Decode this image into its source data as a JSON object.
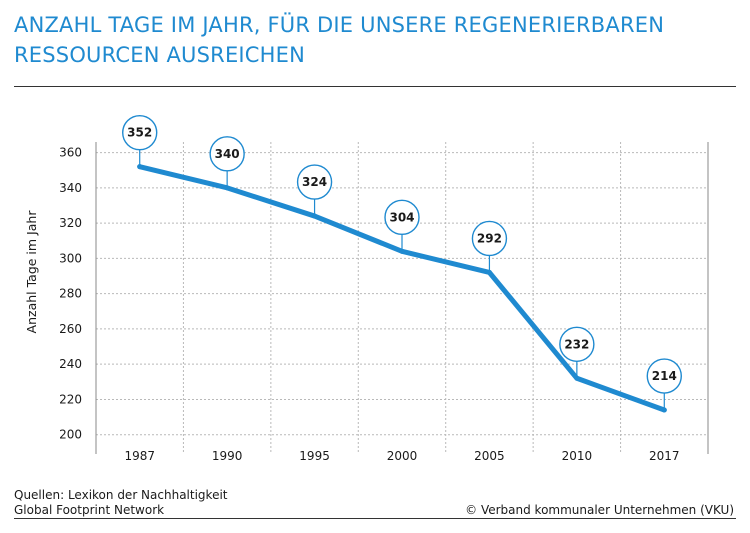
{
  "header": {
    "title_line1": "ANZAHL TAGE IM JAHR, FÜR DIE UNSERE REGENERIERBAREN",
    "title_line2": "RESSOURCEN AUSREICHEN"
  },
  "footer": {
    "source_line1": "Quellen: Lexikon der Nachhaltigkeit",
    "source_line2": "Global Footprint Network",
    "credit": "© Verband kommunaler Unternehmen (VKU)"
  },
  "chart_data": {
    "type": "line",
    "title": "ANZAHL TAGE IM JAHR, FÜR DIE UNSERE REGENERIERBAREN RESSOURCEN AUSREICHEN",
    "xlabel": "",
    "ylabel": "Anzahl Tage im Jahr",
    "categories": [
      "1987",
      "1990",
      "1995",
      "2000",
      "2005",
      "2010",
      "2017"
    ],
    "values": [
      352,
      340,
      324,
      304,
      292,
      232,
      214
    ],
    "y_ticks": [
      200,
      220,
      240,
      260,
      280,
      300,
      320,
      340,
      360
    ],
    "ylim": [
      197,
      366
    ],
    "grid": true,
    "data_labels": [
      "352",
      "340",
      "324",
      "304",
      "292",
      "232",
      "214"
    ],
    "colors": {
      "line": "#1f8ad0",
      "grid": "#b9b9b9",
      "bubble_stroke": "#1f8ad0"
    }
  }
}
